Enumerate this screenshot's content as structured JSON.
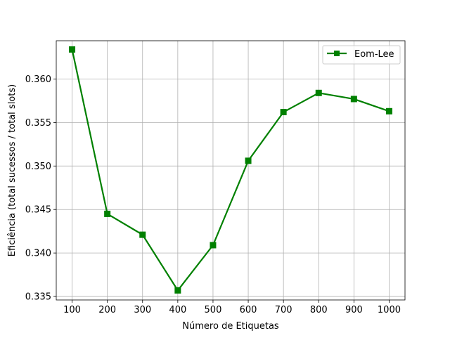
{
  "chart_data": {
    "type": "line",
    "title": "",
    "xlabel": "Número de Etiquetas",
    "ylabel": "Eficiência (total sucessos / total slots)",
    "x": [
      100,
      200,
      300,
      400,
      500,
      600,
      700,
      800,
      900,
      1000
    ],
    "xticks": [
      100,
      200,
      300,
      400,
      500,
      600,
      700,
      800,
      900,
      1000
    ],
    "xlim": [
      55,
      1045
    ],
    "yticks": [
      0.335,
      0.34,
      0.345,
      0.35,
      0.355,
      0.36
    ],
    "ytick_labels": [
      "0.335",
      "0.340",
      "0.345",
      "0.350",
      "0.355",
      "0.360"
    ],
    "ylim": [
      0.3346,
      0.3644
    ],
    "grid": true,
    "legend_position": "upper right",
    "series": [
      {
        "name": "Eom-Lee",
        "color": "#008000",
        "marker": "square",
        "values": [
          0.3634,
          0.3445,
          0.3421,
          0.3357,
          0.3409,
          0.3506,
          0.3562,
          0.3584,
          0.3577,
          0.3563
        ]
      }
    ]
  }
}
